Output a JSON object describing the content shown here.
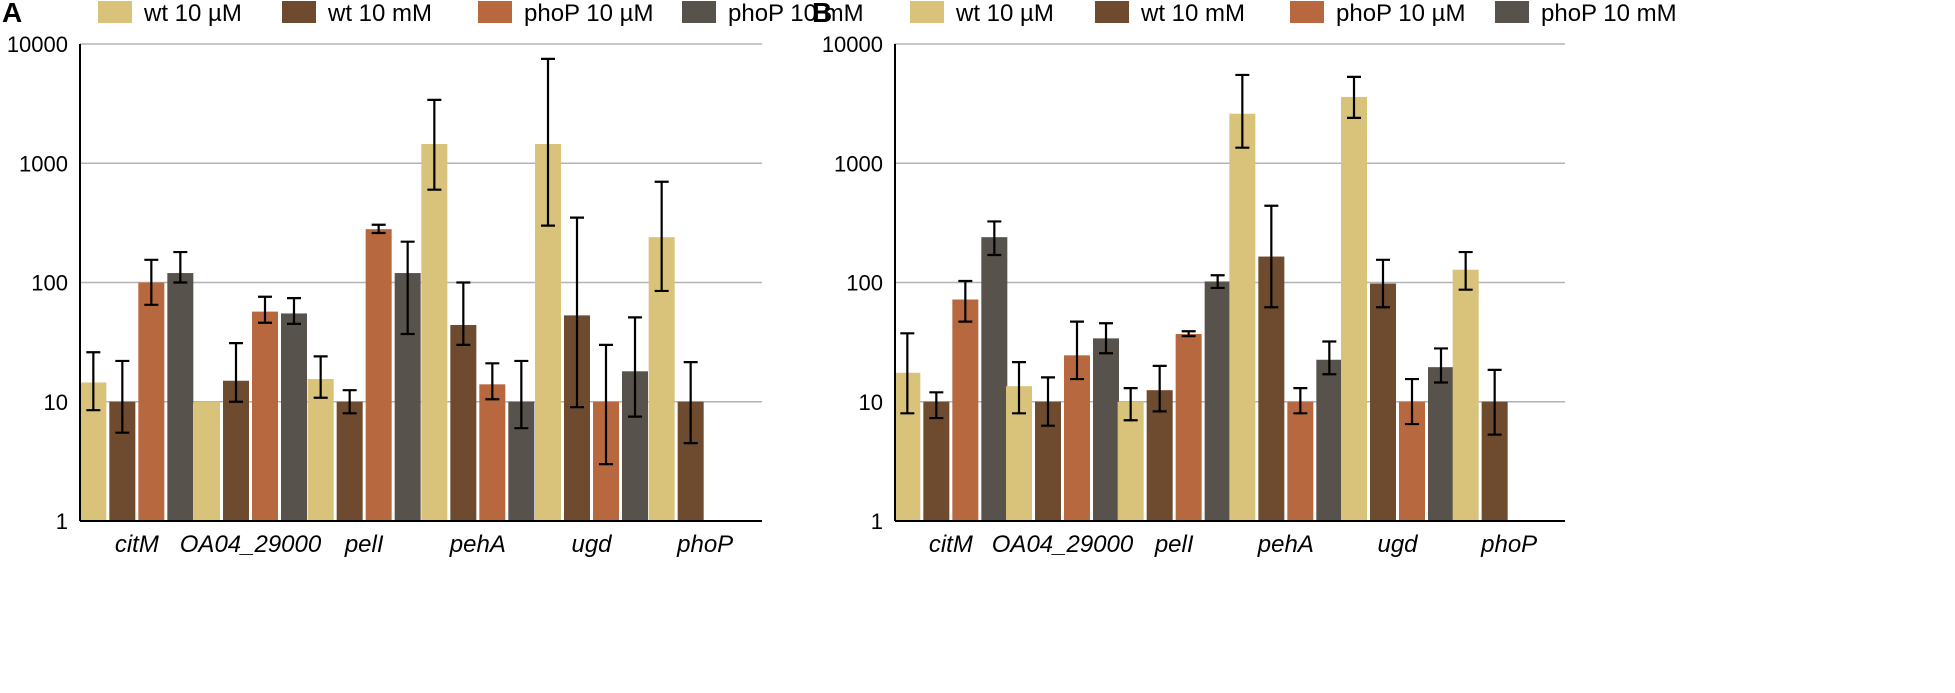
{
  "chart_data": [
    {
      "type": "bar",
      "panel_label": "A",
      "y_scale": "log",
      "ylim": [
        1,
        10000
      ],
      "y_ticks": [
        "1",
        "10",
        "100",
        "1000",
        "10000"
      ],
      "y_tick_values": [
        1,
        10,
        100,
        1000,
        10000
      ],
      "grid": true,
      "legend_position": "top",
      "categories": [
        "citM",
        "OA04_29000",
        "pelI",
        "pehA",
        "ugd",
        "phoP"
      ],
      "series": [
        {
          "name": "wt 10 µM",
          "color": "#D9C27A",
          "values": [
            14.5,
            10,
            15.5,
            1450,
            1450,
            240
          ],
          "err_low": [
            8.5,
            null,
            10.8,
            600,
            300,
            85
          ],
          "err_high": [
            26,
            null,
            24,
            3400,
            7500,
            700
          ]
        },
        {
          "name": "wt 10 mM",
          "color": "#6E4A2E",
          "values": [
            10,
            15,
            10,
            44,
            53,
            10
          ],
          "err_low": [
            5.5,
            10,
            8,
            30,
            9,
            4.5
          ],
          "err_high": [
            22,
            31,
            12.5,
            100,
            350,
            21.5
          ]
        },
        {
          "name": "phoP 10 µM",
          "color": "#B8683F",
          "values": [
            100,
            57,
            280,
            14,
            10,
            null
          ],
          "err_low": [
            65,
            46,
            260,
            10.5,
            3,
            null
          ],
          "err_high": [
            155,
            76,
            305,
            21,
            30,
            null
          ]
        },
        {
          "name": "phoP 10 mM",
          "color": "#57524B",
          "values": [
            120,
            55,
            120,
            10,
            18,
            null
          ],
          "err_low": [
            100,
            45,
            37,
            6,
            7.5,
            null
          ],
          "err_high": [
            180,
            74,
            220,
            22,
            51,
            null
          ]
        }
      ]
    },
    {
      "type": "bar",
      "panel_label": "B",
      "y_scale": "log",
      "ylim": [
        1,
        10000
      ],
      "y_ticks": [
        "1",
        "10",
        "100",
        "1000",
        "10000"
      ],
      "y_tick_values": [
        1,
        10,
        100,
        1000,
        10000
      ],
      "grid": true,
      "legend_position": "top",
      "categories": [
        "citM",
        "OA04_29000",
        "pelI",
        "pehA",
        "ugd",
        "phoP"
      ],
      "series": [
        {
          "name": "wt 10 µM",
          "color": "#D9C27A",
          "values": [
            17.5,
            13.5,
            10,
            2600,
            3600,
            128
          ],
          "err_low": [
            8,
            8,
            7,
            1350,
            2400,
            87
          ],
          "err_high": [
            37.5,
            21.5,
            13,
            5500,
            5300,
            180
          ]
        },
        {
          "name": "wt 10 mM",
          "color": "#6E4A2E",
          "values": [
            10,
            10,
            12.5,
            165,
            98,
            10
          ],
          "err_low": [
            7.3,
            6.3,
            8.3,
            62,
            62,
            5.3
          ],
          "err_high": [
            12,
            16,
            20,
            440,
            155,
            18.5
          ]
        },
        {
          "name": "phoP 10 µM",
          "color": "#B8683F",
          "values": [
            72,
            24.5,
            37,
            10,
            10,
            null
          ],
          "err_low": [
            47,
            15.5,
            35.5,
            8,
            6.5,
            null
          ],
          "err_high": [
            103,
            47,
            39,
            13,
            15.5,
            null
          ]
        },
        {
          "name": "phoP 10 mM",
          "color": "#57524B",
          "values": [
            240,
            34,
            102,
            22.5,
            19.5,
            null
          ],
          "err_low": [
            170,
            25.5,
            90,
            17,
            14.5,
            null
          ],
          "err_high": [
            325,
            45.5,
            115,
            32,
            28,
            null
          ]
        }
      ]
    }
  ]
}
